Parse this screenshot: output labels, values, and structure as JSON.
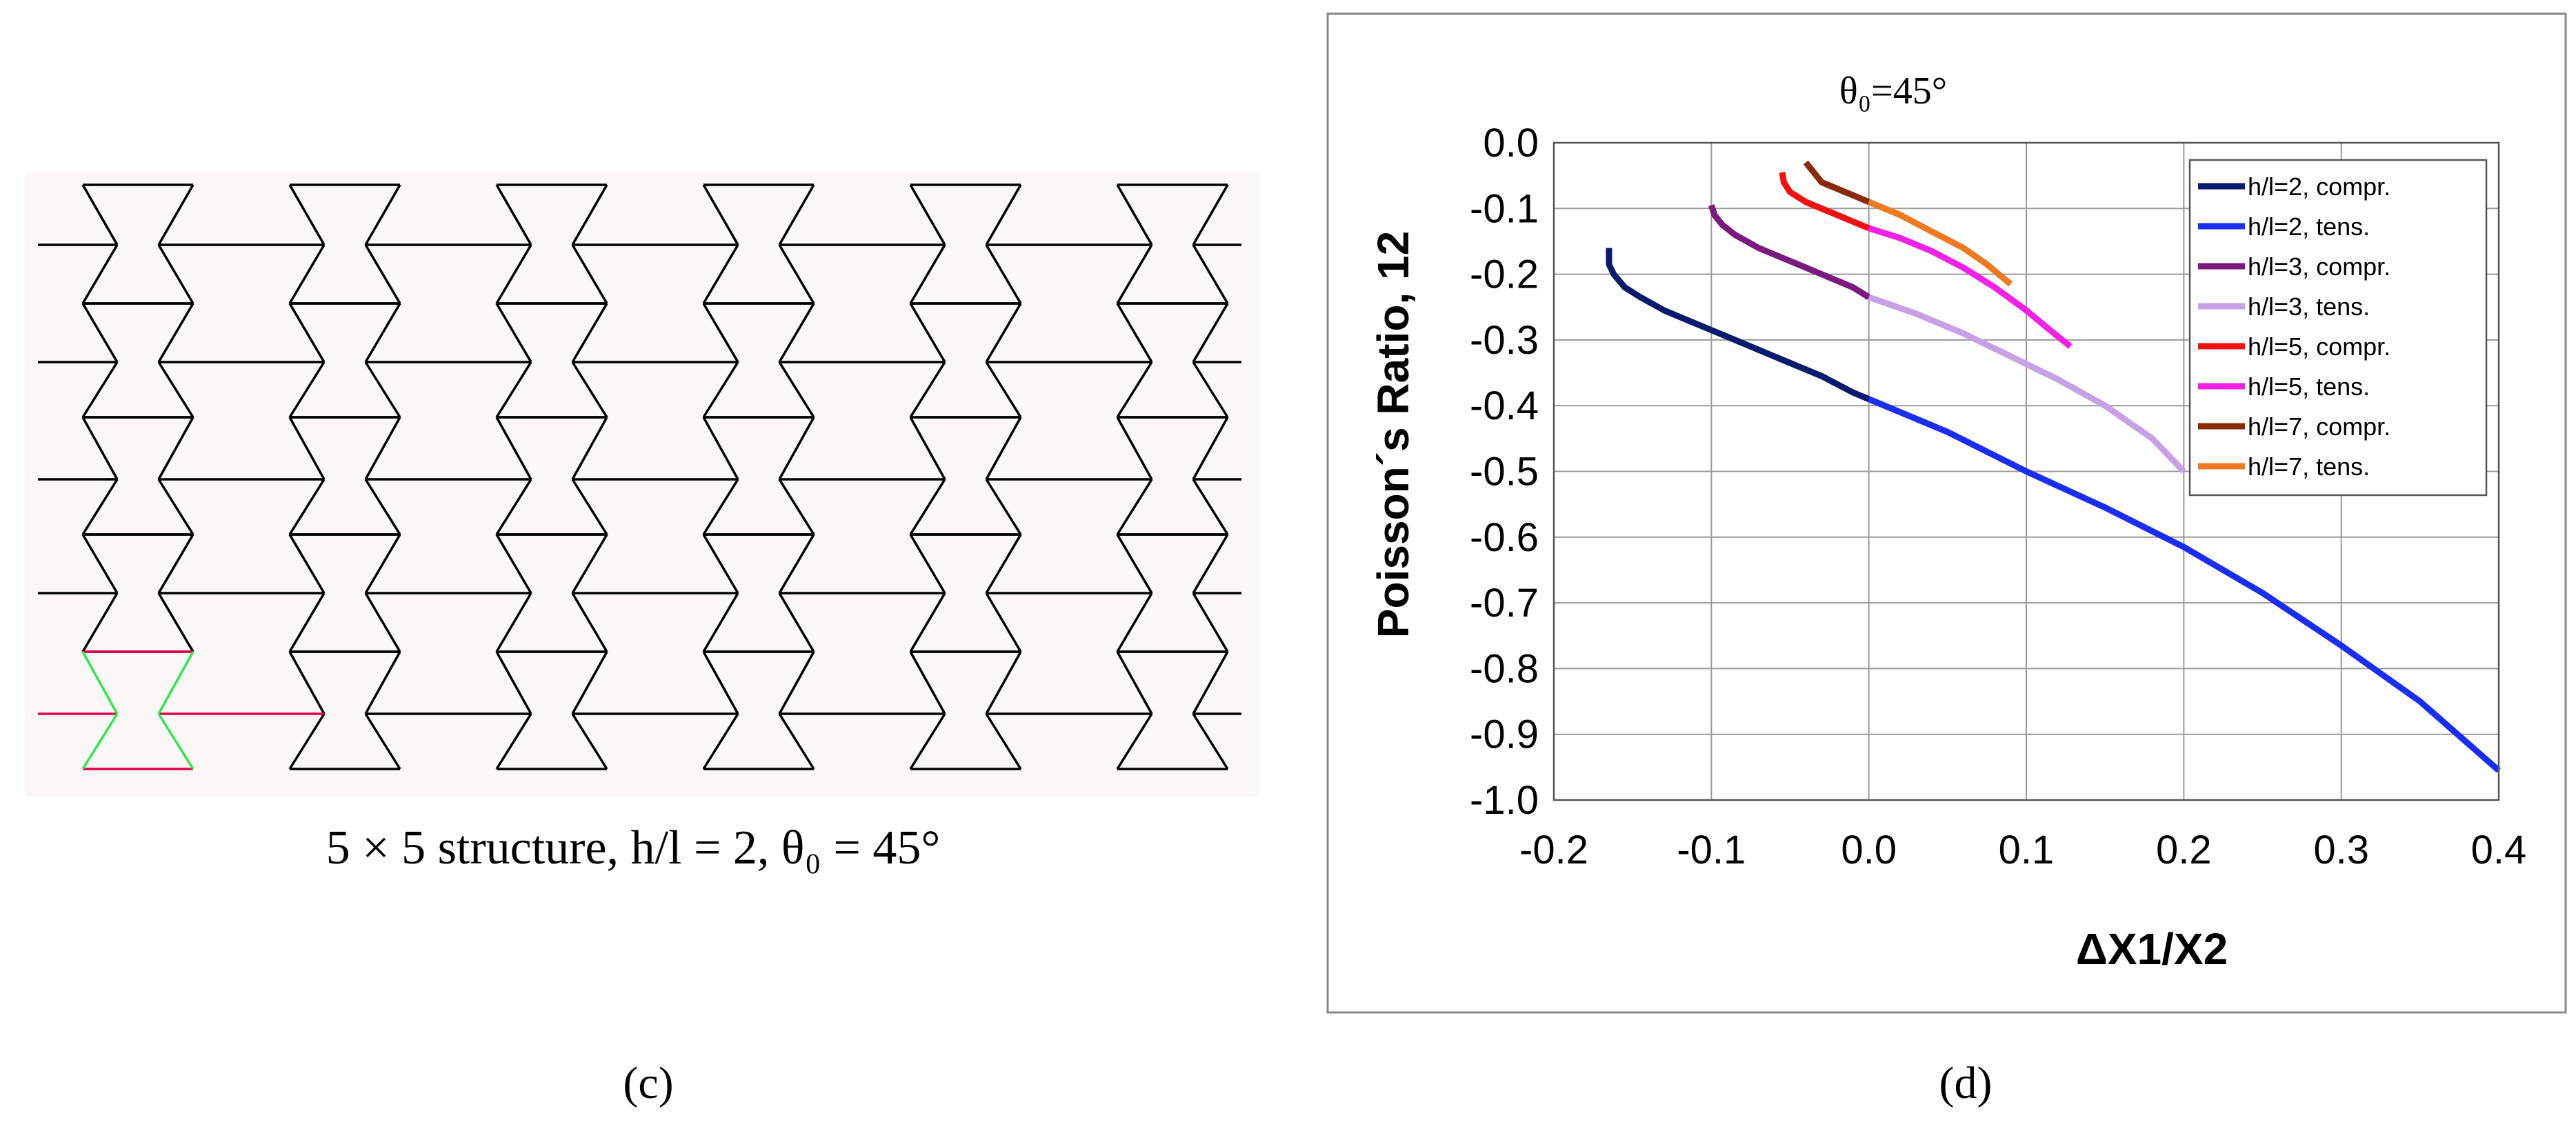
{
  "panel_c": {
    "caption": "5 × 5 structure, h/l = 2, θ₀ = 45°",
    "label": "(c)",
    "background": "#fcf7f7",
    "line_color": "#000000",
    "highlight_red": "#e0004a",
    "highlight_green": "#2ee84a"
  },
  "panel_d": {
    "label": "(d)"
  },
  "chart_data": {
    "type": "line",
    "title": "θ₀=45°",
    "xlabel": "ΔX1/X2",
    "ylabel": "Poisson´s Ratio, 12",
    "xlim": [
      -0.2,
      0.4
    ],
    "ylim": [
      -1.0,
      0.0
    ],
    "x_ticks": [
      "-0.2",
      "-0.1",
      "0.0",
      "0.1",
      "0.2",
      "0.3",
      "0.4"
    ],
    "y_ticks": [
      "0.0",
      "-0.1",
      "-0.2",
      "-0.3",
      "-0.4",
      "-0.5",
      "-0.6",
      "-0.7",
      "-0.8",
      "-0.9",
      "-1.0"
    ],
    "grid": true,
    "legend_position": "top-right",
    "series": [
      {
        "name": "h/l=2, compr.",
        "color": "#0a1a6e",
        "x": [
          -0.165,
          -0.165,
          -0.162,
          -0.155,
          -0.145,
          -0.13,
          -0.11,
          -0.09,
          -0.07,
          -0.05,
          -0.03,
          -0.01,
          0.0
        ],
        "y": [
          -0.16,
          -0.185,
          -0.2,
          -0.22,
          -0.235,
          -0.255,
          -0.275,
          -0.295,
          -0.315,
          -0.335,
          -0.355,
          -0.38,
          -0.39
        ]
      },
      {
        "name": "h/l=2, tens.",
        "color": "#1a2ef0",
        "x": [
          0.0,
          0.05,
          0.1,
          0.15,
          0.2,
          0.25,
          0.3,
          0.35,
          0.4
        ],
        "y": [
          -0.39,
          -0.44,
          -0.5,
          -0.555,
          -0.615,
          -0.685,
          -0.765,
          -0.85,
          -0.955
        ]
      },
      {
        "name": "h/l=3, compr.",
        "color": "#7a1a7e",
        "x": [
          -0.1,
          -0.098,
          -0.093,
          -0.085,
          -0.07,
          -0.05,
          -0.03,
          -0.01,
          0.0
        ],
        "y": [
          -0.095,
          -0.11,
          -0.125,
          -0.14,
          -0.16,
          -0.18,
          -0.2,
          -0.22,
          -0.235
        ]
      },
      {
        "name": "h/l=3, tens.",
        "color": "#c8a0e6",
        "x": [
          0.0,
          0.03,
          0.06,
          0.09,
          0.12,
          0.15,
          0.18,
          0.2
        ],
        "y": [
          -0.235,
          -0.26,
          -0.29,
          -0.325,
          -0.36,
          -0.4,
          -0.45,
          -0.5
        ]
      },
      {
        "name": "h/l=5, compr.",
        "color": "#f01010",
        "x": [
          -0.055,
          -0.054,
          -0.05,
          -0.04,
          -0.03,
          -0.02,
          -0.01,
          0.0
        ],
        "y": [
          -0.045,
          -0.06,
          -0.075,
          -0.09,
          -0.1,
          -0.11,
          -0.12,
          -0.13
        ]
      },
      {
        "name": "h/l=5, tens.",
        "color": "#f020e6",
        "x": [
          0.0,
          0.02,
          0.04,
          0.06,
          0.08,
          0.1,
          0.115,
          0.128
        ],
        "y": [
          -0.13,
          -0.145,
          -0.165,
          -0.19,
          -0.22,
          -0.255,
          -0.285,
          -0.31
        ]
      },
      {
        "name": "h/l=7, compr.",
        "color": "#8a2a0a",
        "x": [
          -0.04,
          -0.035,
          -0.03,
          -0.02,
          -0.01,
          0.0
        ],
        "y": [
          -0.03,
          -0.045,
          -0.06,
          -0.07,
          -0.08,
          -0.09
        ]
      },
      {
        "name": "h/l=7, tens.",
        "color": "#f07820",
        "x": [
          0.0,
          0.02,
          0.04,
          0.06,
          0.075,
          0.09
        ],
        "y": [
          -0.09,
          -0.11,
          -0.135,
          -0.16,
          -0.185,
          -0.215
        ]
      }
    ]
  }
}
